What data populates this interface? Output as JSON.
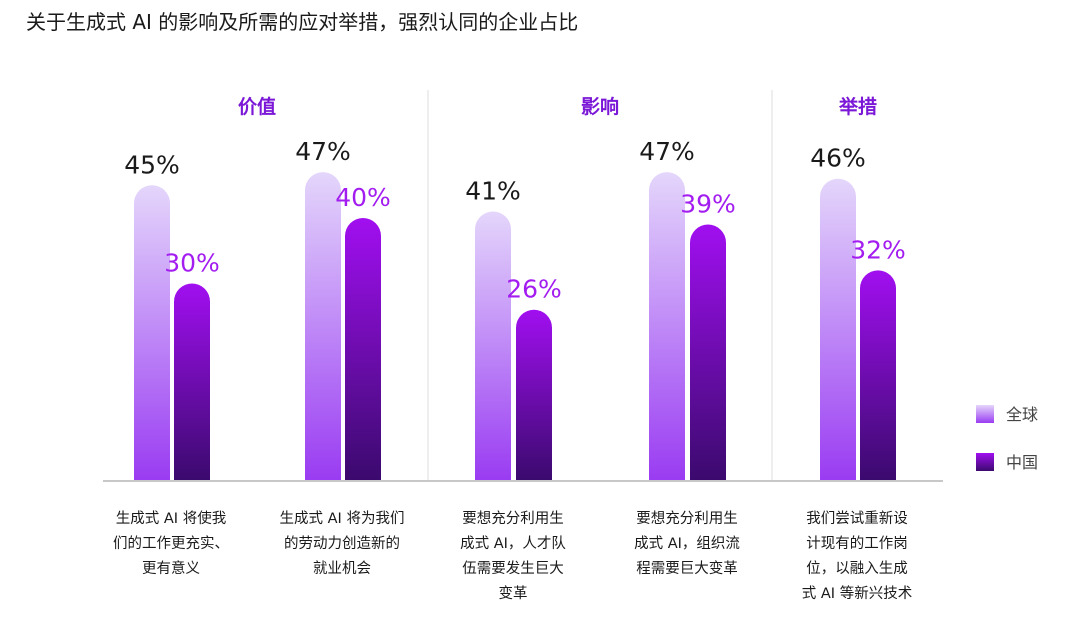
{
  "chart_data": {
    "type": "bar",
    "title": "关于生成式 AI 的影响及所需的应对举措，强烈认同的企业占比",
    "groups": [
      {
        "label": "价值",
        "categories": [
          0,
          1
        ]
      },
      {
        "label": "影响",
        "categories": [
          2,
          3
        ]
      },
      {
        "label": "举措",
        "categories": [
          4
        ]
      }
    ],
    "categories": [
      [
        "生成式 AI 将使我",
        "们的工作更充实、",
        "更有意义"
      ],
      [
        "生成式 AI 将为我们",
        "的劳动力创造新的",
        "就业机会"
      ],
      [
        "要想充分利用生",
        "成式 AI，人才队",
        "伍需要发生巨大",
        "变革"
      ],
      [
        "要想充分利用生",
        "成式 AI，组织流",
        "程需要巨大变革"
      ],
      [
        "我们尝试重新设",
        "计现有的工作岗",
        "位，以融入生成",
        "式 AI 等新兴技术"
      ]
    ],
    "series": [
      {
        "name": "全球",
        "values": [
          45,
          47,
          41,
          47,
          46
        ],
        "labels": [
          "45%",
          "47%",
          "41%",
          "47%",
          "46%"
        ],
        "color_top": "#e4d6fb",
        "color_bottom": "#9a3cf2"
      },
      {
        "name": "中国",
        "values": [
          30,
          40,
          26,
          39,
          32
        ],
        "labels": [
          "30%",
          "40%",
          "26%",
          "39%",
          "32%"
        ],
        "color_top": "#a10ff0",
        "color_bottom": "#3b0a6e"
      }
    ],
    "ylim": [
      0,
      50
    ],
    "grid": false,
    "legend": "right",
    "xlabel": "",
    "ylabel": ""
  }
}
